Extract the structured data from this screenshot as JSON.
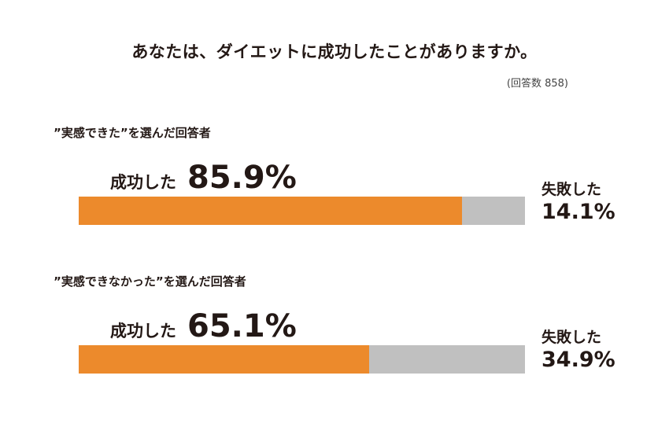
{
  "title": "あなたは、ダイエットに成功したことがありますか。",
  "sample_note": "(回答数 858)",
  "groups": [
    {
      "label": "”実感できた”を選んだ回答者",
      "success_label": "成功した",
      "success_value_text": "85.9%",
      "fail_label": "失敗した",
      "fail_value_text": "14.1%"
    },
    {
      "label": "”実感できなかった”を選んだ回答者",
      "success_label": "成功した",
      "success_value_text": "65.1%",
      "fail_label": "失敗した",
      "fail_value_text": "34.9%"
    }
  ],
  "colors": {
    "success": "#ec8a2c",
    "fail": "#c0c0c0",
    "text": "#231815"
  },
  "chart_data": {
    "type": "bar",
    "orientation": "horizontal-stacked",
    "title": "あなたは、ダイエットに成功したことがありますか。",
    "categories": [
      "”実感できた”を選んだ回答者",
      "”実感できなかった”を選んだ回答者"
    ],
    "series": [
      {
        "name": "成功した",
        "values": [
          85.9,
          65.1
        ]
      },
      {
        "name": "失敗した",
        "values": [
          14.1,
          34.9
        ]
      }
    ],
    "unit": "%",
    "xlim": [
      0,
      100
    ],
    "grid": false
  }
}
